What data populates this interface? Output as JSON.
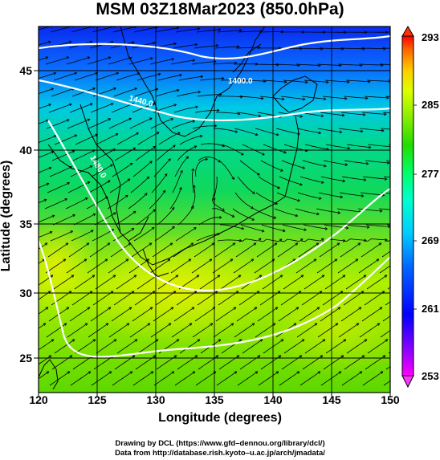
{
  "title": "MSM 03Z18Mar2023 (850.0hPa)",
  "x_axis": {
    "title": "Longitude (degrees)",
    "ticks": [
      "120",
      "125",
      "130",
      "135",
      "140",
      "145",
      "150"
    ],
    "range": [
      120,
      150
    ]
  },
  "y_axis": {
    "title": "Latitude  (degrees)",
    "ticks": [
      "25",
      "30",
      "35",
      "40",
      "45"
    ],
    "range": [
      22.4,
      47.6
    ]
  },
  "colorbar": {
    "labels": [
      "293",
      "285",
      "277",
      "269",
      "261",
      "253"
    ],
    "range": [
      253,
      293
    ],
    "colors": [
      "#ff00ff",
      "#8800ff",
      "#0000ff",
      "#0066ff",
      "#00ccff",
      "#00ffcc",
      "#00ff66",
      "#22dd00",
      "#88ee00",
      "#ddff00",
      "#ffcc00",
      "#ff6600",
      "#ff0000"
    ]
  },
  "contour_labels": [
    "1400.0",
    "1440.0",
    "1480.0"
  ],
  "credits": {
    "line1": "Drawing by DCL (https://www.gfd–dennou.org/library/dcl/)",
    "line2": "Data from http://database.rish.kyoto–u.ac.jp/arch/jmadata/"
  }
}
